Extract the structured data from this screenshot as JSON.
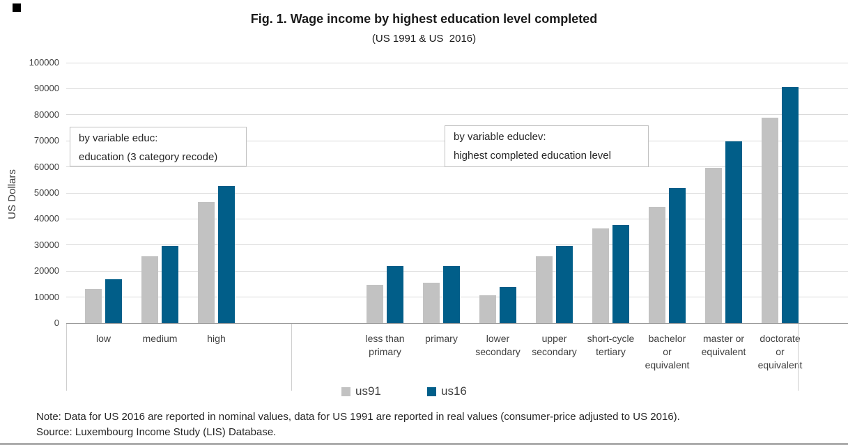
{
  "header": {
    "title": "Fig. 1. Wage income by highest education level completed",
    "subtitle": "(US 1991 & US  2016)"
  },
  "y_axis": {
    "title": "US Dollars",
    "tick_labels": [
      "100000",
      "90000",
      "80000",
      "70000",
      "60000",
      "50000",
      "40000",
      "30000",
      "20000",
      "10000",
      "0"
    ],
    "tick_values": [
      100000,
      90000,
      80000,
      70000,
      60000,
      50000,
      40000,
      30000,
      20000,
      10000,
      0
    ]
  },
  "annotations": [
    {
      "lines": [
        "by variable educ:",
        "education (3 category recode)"
      ]
    },
    {
      "lines": [
        "by variable educlev:",
        "highest completed education level"
      ]
    }
  ],
  "legend": [
    {
      "label": "us91",
      "color": "#c2c2c2"
    },
    {
      "label": "us16",
      "color": "#015e89"
    }
  ],
  "footer": {
    "note": "Note: Data for US 2016 are reported in nominal values, data for US 1991 are reported in real values (consumer-price adjusted to US 2016).",
    "source": "Source: Luxembourg Income Study (LIS) Database."
  },
  "chart_data": {
    "type": "bar",
    "title": "Fig. 1. Wage income by highest education level completed",
    "subtitle": "(US 1991 & US  2016)",
    "ylabel": "US Dollars",
    "ylim": [
      0,
      100000
    ],
    "ytick_step": 10000,
    "grid": true,
    "legend_position": "bottom",
    "groups": [
      {
        "variable_note": "by variable educ: education (3 category recode)",
        "categories": [
          "low",
          "medium",
          "high"
        ]
      },
      {
        "variable_note": "by variable educlev: highest completed education level",
        "categories": [
          "less than primary",
          "primary",
          "lower secondary",
          "upper secondary",
          "short-cycle tertiary",
          "bachelor or equivalent",
          "master or equivalent",
          "doctorate or equivalent"
        ]
      }
    ],
    "categories": [
      "low",
      "medium",
      "high",
      "less than primary",
      "primary",
      "lower secondary",
      "upper secondary",
      "short-cycle tertiary",
      "bachelor or equivalent",
      "master or equivalent",
      "doctorate or equivalent"
    ],
    "category_label_lines": [
      [
        "low"
      ],
      [
        "medium"
      ],
      [
        "high"
      ],
      [
        "less than",
        "primary"
      ],
      [
        "primary"
      ],
      [
        "lower",
        "secondary"
      ],
      [
        "upper",
        "secondary"
      ],
      [
        "short-cycle",
        "tertiary"
      ],
      [
        "bachelor",
        "or",
        "equivalent"
      ],
      [
        "master or",
        "equivalent"
      ],
      [
        "doctorate",
        "or",
        "equivalent"
      ]
    ],
    "series": [
      {
        "name": "us91",
        "color": "#c2c2c2",
        "values": [
          13200,
          25800,
          46500,
          14700,
          15500,
          10700,
          25800,
          36400,
          44700,
          59600,
          78900
        ]
      },
      {
        "name": "us16",
        "color": "#015e89",
        "values": [
          16900,
          29800,
          52800,
          21800,
          21800,
          13900,
          29700,
          37700,
          52000,
          69900,
          90600
        ]
      }
    ]
  }
}
